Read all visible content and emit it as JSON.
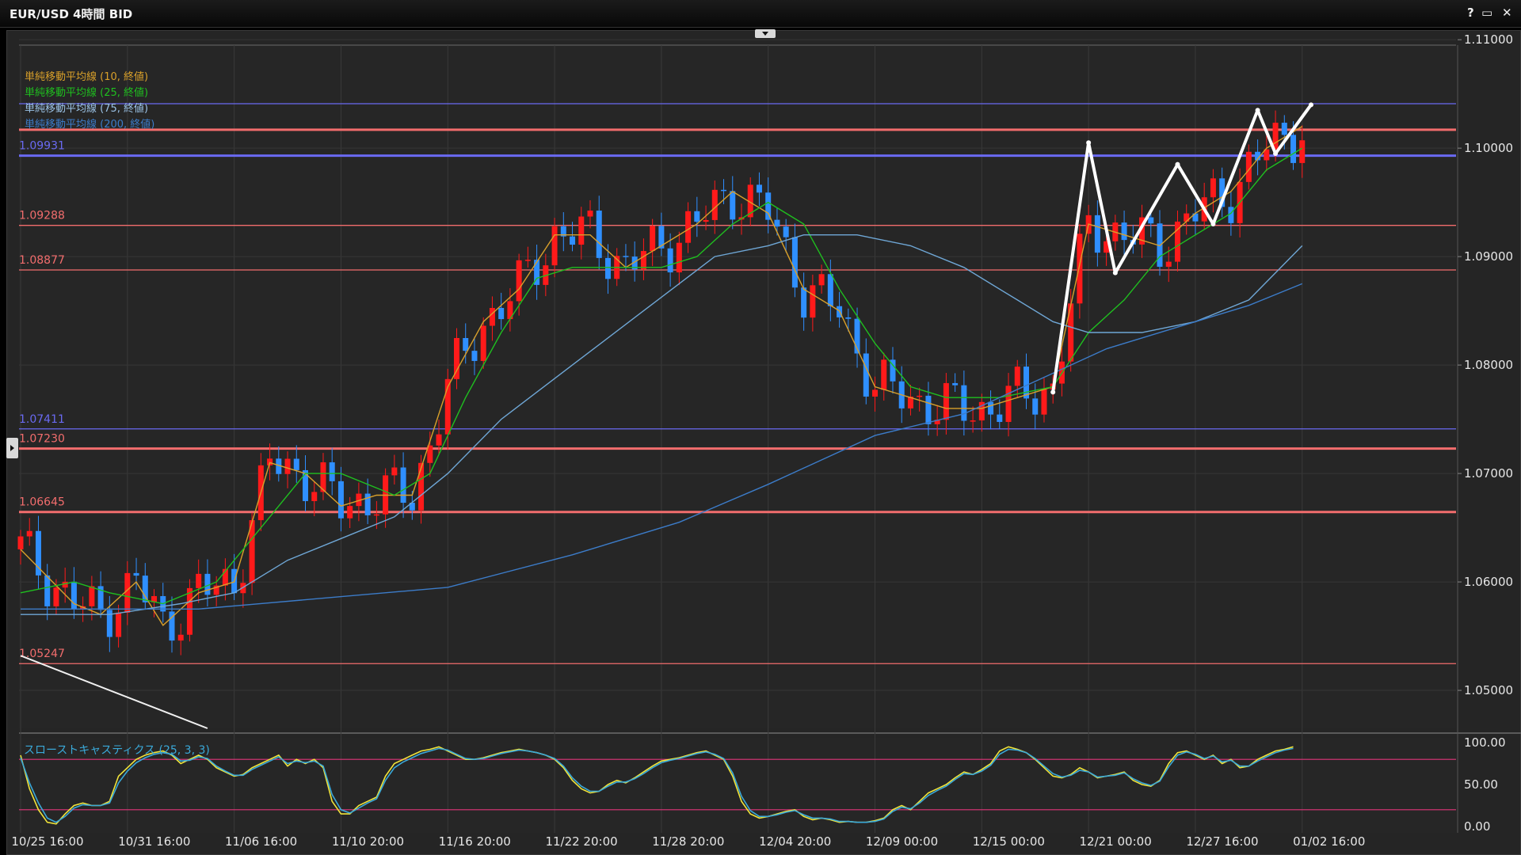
{
  "window": {
    "title": "EUR/USD 4時間 BID",
    "help_label": "?",
    "maximize_label": "▭",
    "close_label": "✕"
  },
  "legend": {
    "sma10": "単純移動平均線 (10, 終値)",
    "sma25": "単純移動平均線 (25, 終値)",
    "sma75": "単純移動平均線 (75, 終値)",
    "sma200": "単純移動平均線 (200, 終値)",
    "stoch": "スローストキャスティクス (25, 3, 3)"
  },
  "colors": {
    "bull": "#ff1a1a",
    "bear": "#2f8fff",
    "sma10": "#d9a02a",
    "sma25": "#1fbf1f",
    "sma75": "#6fa7d6",
    "sma200": "#3c7cc9",
    "stoch_k": "#f1e43a",
    "stoch_d": "#3aa9d9",
    "level_red": "#f26d6d",
    "level_blue": "#6a6af2",
    "zigzag": "#ffffff"
  },
  "chart_data": [
    {
      "type": "candlestick",
      "symbol": "EUR/USD",
      "timeframe": "4時間",
      "price_side": "BID",
      "ylim": [
        1.0465,
        1.1095
      ],
      "y_ticks": [
        "1.05000",
        "1.06000",
        "1.07000",
        "1.08000",
        "1.09000",
        "1.10000",
        "1.11000"
      ],
      "x_ticks": [
        "10/25 16:00",
        "10/31 16:00",
        "11/06 16:00",
        "11/10 20:00",
        "11/16 20:00",
        "11/22 20:00",
        "11/28 20:00",
        "12/04 20:00",
        "12/09 00:00",
        "12/15 00:00",
        "12/21 00:00",
        "12/27 16:00",
        "01/02 16:00"
      ],
      "horizontal_levels": [
        {
          "price": 1.1041,
          "color": "blue",
          "label": ""
        },
        {
          "price": 1.1017,
          "color": "red",
          "label": ""
        },
        {
          "price": 1.09931,
          "color": "blue",
          "label": "1.09931"
        },
        {
          "price": 1.09288,
          "color": "red",
          "label": "1.09288"
        },
        {
          "price": 1.08877,
          "color": "red",
          "label": "1.08877"
        },
        {
          "price": 1.07411,
          "color": "blue",
          "label": "1.07411"
        },
        {
          "price": 1.0723,
          "color": "red",
          "label": "1.07230"
        },
        {
          "price": 1.06645,
          "color": "red",
          "label": "1.06645"
        },
        {
          "price": 1.05247,
          "color": "red",
          "label": "1.05247"
        }
      ],
      "series": [
        {
          "name": "単純移動平均線 (10, 終値)",
          "values": [
            [
              0,
              1.063
            ],
            [
              6,
              1.058
            ],
            [
              9,
              1.057
            ],
            [
              13,
              1.06
            ],
            [
              16,
              1.056
            ],
            [
              20,
              1.059
            ],
            [
              24,
              1.06
            ],
            [
              28,
              1.071
            ],
            [
              32,
              1.07
            ],
            [
              36,
              1.067
            ],
            [
              40,
              1.068
            ],
            [
              44,
              1.068
            ],
            [
              48,
              1.078
            ],
            [
              52,
              1.084
            ],
            [
              56,
              1.087
            ],
            [
              60,
              1.092
            ],
            [
              64,
              1.092
            ],
            [
              68,
              1.089
            ],
            [
              72,
              1.091
            ],
            [
              76,
              1.093
            ],
            [
              80,
              1.096
            ],
            [
              84,
              1.094
            ],
            [
              88,
              1.087
            ],
            [
              92,
              1.085
            ],
            [
              96,
              1.078
            ],
            [
              100,
              1.077
            ],
            [
              104,
              1.076
            ],
            [
              108,
              1.076
            ],
            [
              112,
              1.077
            ],
            [
              116,
              1.078
            ],
            [
              120,
              1.093
            ],
            [
              124,
              1.092
            ],
            [
              128,
              1.091
            ],
            [
              132,
              1.094
            ],
            [
              136,
              1.096
            ],
            [
              140,
              1.1
            ],
            [
              144,
              1.102
            ]
          ]
        },
        {
          "name": "単純移動平均線 (25, 終値)",
          "values": [
            [
              0,
              1.059
            ],
            [
              6,
              1.06
            ],
            [
              10,
              1.059
            ],
            [
              16,
              1.058
            ],
            [
              22,
              1.06
            ],
            [
              28,
              1.066
            ],
            [
              32,
              1.07
            ],
            [
              36,
              1.07
            ],
            [
              42,
              1.068
            ],
            [
              46,
              1.07
            ],
            [
              50,
              1.077
            ],
            [
              54,
              1.083
            ],
            [
              58,
              1.088
            ],
            [
              62,
              1.089
            ],
            [
              68,
              1.089
            ],
            [
              72,
              1.089
            ],
            [
              76,
              1.09
            ],
            [
              80,
              1.093
            ],
            [
              84,
              1.095
            ],
            [
              88,
              1.093
            ],
            [
              92,
              1.087
            ],
            [
              96,
              1.082
            ],
            [
              100,
              1.078
            ],
            [
              104,
              1.077
            ],
            [
              110,
              1.077
            ],
            [
              116,
              1.078
            ],
            [
              120,
              1.083
            ],
            [
              124,
              1.086
            ],
            [
              128,
              1.09
            ],
            [
              132,
              1.092
            ],
            [
              136,
              1.094
            ],
            [
              140,
              1.098
            ],
            [
              144,
              1.1
            ]
          ]
        },
        {
          "name": "単純移動平均線 (75, 終値)",
          "values": [
            [
              0,
              1.057
            ],
            [
              10,
              1.057
            ],
            [
              18,
              1.058
            ],
            [
              24,
              1.059
            ],
            [
              30,
              1.062
            ],
            [
              36,
              1.064
            ],
            [
              42,
              1.066
            ],
            [
              48,
              1.07
            ],
            [
              54,
              1.075
            ],
            [
              62,
              1.08
            ],
            [
              70,
              1.085
            ],
            [
              78,
              1.09
            ],
            [
              84,
              1.091
            ],
            [
              88,
              1.092
            ],
            [
              94,
              1.092
            ],
            [
              100,
              1.091
            ],
            [
              106,
              1.089
            ],
            [
              112,
              1.086
            ],
            [
              116,
              1.084
            ],
            [
              120,
              1.083
            ],
            [
              126,
              1.083
            ],
            [
              132,
              1.084
            ],
            [
              138,
              1.086
            ],
            [
              144,
              1.091
            ]
          ]
        },
        {
          "name": "単純移動平均線 (200, 終値)",
          "values": [
            [
              0,
              1.0575
            ],
            [
              20,
              1.0575
            ],
            [
              34,
              1.0585
            ],
            [
              48,
              1.0595
            ],
            [
              62,
              1.0625
            ],
            [
              74,
              1.0655
            ],
            [
              84,
              1.069
            ],
            [
              96,
              1.0735
            ],
            [
              106,
              1.0755
            ],
            [
              114,
              1.0785
            ],
            [
              122,
              1.0815
            ],
            [
              130,
              1.0835
            ],
            [
              138,
              1.0855
            ],
            [
              144,
              1.0875
            ]
          ]
        }
      ],
      "zigzag": [
        [
          116,
          1.0775
        ],
        [
          120,
          1.1005
        ],
        [
          123,
          1.0885
        ],
        [
          130,
          1.0985
        ],
        [
          134,
          1.093
        ],
        [
          139,
          1.1035
        ],
        [
          141,
          1.0995
        ],
        [
          145,
          1.104
        ]
      ],
      "trendline": [
        [
          0,
          1.0532
        ],
        [
          21,
          1.0465
        ]
      ]
    },
    {
      "type": "line",
      "name": "スローストキャスティクス (25, 3, 3)",
      "ylim": [
        0,
        100
      ],
      "y_ticks": [
        "100.00",
        "50.00",
        "0.00"
      ],
      "reference_levels": [
        80,
        20
      ],
      "series": [
        {
          "name": "%K",
          "values": [
            85,
            45,
            20,
            5,
            3,
            15,
            25,
            28,
            25,
            25,
            30,
            60,
            70,
            80,
            85,
            88,
            90,
            85,
            75,
            80,
            85,
            80,
            70,
            65,
            60,
            62,
            70,
            75,
            80,
            85,
            72,
            80,
            75,
            80,
            70,
            30,
            15,
            15,
            25,
            30,
            35,
            60,
            75,
            80,
            85,
            90,
            92,
            95,
            90,
            85,
            80,
            80,
            82,
            85,
            88,
            90,
            92,
            90,
            88,
            85,
            80,
            70,
            55,
            45,
            40,
            42,
            50,
            55,
            52,
            58,
            65,
            72,
            78,
            80,
            82,
            85,
            88,
            90,
            85,
            80,
            60,
            30,
            15,
            10,
            12,
            15,
            18,
            20,
            12,
            8,
            10,
            8,
            5,
            6,
            5,
            5,
            7,
            10,
            20,
            25,
            20,
            30,
            40,
            45,
            50,
            58,
            65,
            62,
            68,
            75,
            90,
            95,
            92,
            88,
            80,
            70,
            60,
            58,
            62,
            70,
            65,
            58,
            60,
            62,
            65,
            55,
            50,
            48,
            55,
            75,
            88,
            90,
            85,
            80,
            85,
            75,
            80,
            70,
            72,
            80,
            85,
            90,
            92,
            95
          ]
        },
        {
          "name": "%D",
          "values": [
            82,
            52,
            28,
            10,
            5,
            12,
            22,
            26,
            25,
            25,
            28,
            52,
            66,
            76,
            82,
            86,
            88,
            86,
            78,
            79,
            83,
            81,
            72,
            66,
            61,
            61,
            68,
            73,
            78,
            83,
            75,
            78,
            76,
            78,
            72,
            38,
            20,
            16,
            22,
            28,
            33,
            55,
            70,
            77,
            82,
            87,
            90,
            93,
            91,
            86,
            81,
            80,
            81,
            84,
            87,
            89,
            91,
            90,
            88,
            85,
            81,
            72,
            58,
            48,
            42,
            42,
            48,
            53,
            53,
            57,
            63,
            70,
            76,
            79,
            81,
            84,
            87,
            89,
            86,
            81,
            64,
            36,
            19,
            12,
            12,
            14,
            17,
            19,
            14,
            10,
            10,
            9,
            6,
            6,
            5,
            5,
            6,
            9,
            18,
            23,
            21,
            28,
            37,
            43,
            48,
            56,
            63,
            62,
            66,
            73,
            86,
            92,
            91,
            88,
            81,
            72,
            63,
            59,
            61,
            67,
            65,
            59,
            60,
            61,
            64,
            57,
            52,
            49,
            54,
            71,
            85,
            89,
            86,
            81,
            84,
            77,
            79,
            72,
            72,
            78,
            83,
            88,
            91,
            93
          ]
        }
      ]
    }
  ]
}
